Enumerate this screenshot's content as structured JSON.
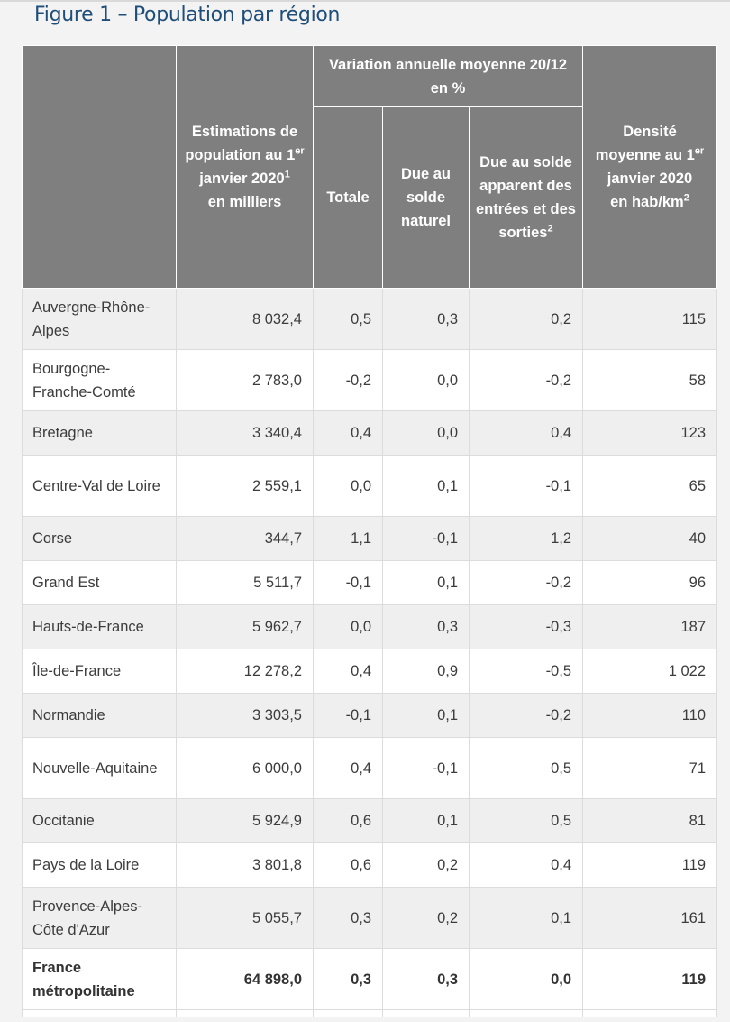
{
  "title": "Figure 1 – Population par région",
  "headers": {
    "col0": "",
    "estimations": {
      "line1": "Estimations de population au 1",
      "sup1": "er",
      "line2": " janvier 2020",
      "sup2": "1",
      "line3": "en milliers"
    },
    "variation": "Variation annuelle moyenne 20/12 en %",
    "totale": "Totale",
    "naturel": "Due au solde naturel",
    "apparent": {
      "text": "Due au solde apparent des entrées et des sorties",
      "sup": "2"
    },
    "densite": {
      "line1": "Densité moyenne au 1",
      "sup1": "er",
      "line2": " janvier 2020",
      "line3": "en hab/km",
      "sup2": "2"
    }
  },
  "rows": [
    {
      "region": "Auvergne-Rhône-Alpes",
      "pop": "8 032,4",
      "totale": "0,5",
      "naturel": "0,3",
      "apparent": "0,2",
      "densite": "115"
    },
    {
      "region": "Bourgogne-Franche-Comté",
      "pop": "2 783,0",
      "totale": "-0,2",
      "naturel": "0,0",
      "apparent": "-0,2",
      "densite": "58"
    },
    {
      "region": "Bretagne",
      "pop": "3 340,4",
      "totale": "0,4",
      "naturel": "0,0",
      "apparent": "0,4",
      "densite": "123"
    },
    {
      "region": "Centre-Val de Loire",
      "pop": "2 559,1",
      "totale": "0,0",
      "naturel": "0,1",
      "apparent": "-0,1",
      "densite": "65"
    },
    {
      "region": "Corse",
      "pop": "344,7",
      "totale": "1,1",
      "naturel": "-0,1",
      "apparent": "1,2",
      "densite": "40"
    },
    {
      "region": "Grand Est",
      "pop": "5 511,7",
      "totale": "-0,1",
      "naturel": "0,1",
      "apparent": "-0,2",
      "densite": "96"
    },
    {
      "region": "Hauts-de-France",
      "pop": "5 962,7",
      "totale": "0,0",
      "naturel": "0,3",
      "apparent": "-0,3",
      "densite": "187"
    },
    {
      "region": "Île-de-France",
      "pop": "12 278,2",
      "totale": "0,4",
      "naturel": "0,9",
      "apparent": "-0,5",
      "densite": "1 022"
    },
    {
      "region": "Normandie",
      "pop": "3 303,5",
      "totale": "-0,1",
      "naturel": "0,1",
      "apparent": "-0,2",
      "densite": "110"
    },
    {
      "region": "Nouvelle-Aquitaine",
      "pop": "6 000,0",
      "totale": "0,4",
      "naturel": "-0,1",
      "apparent": "0,5",
      "densite": "71"
    },
    {
      "region": "Occitanie",
      "pop": "5 924,9",
      "totale": "0,6",
      "naturel": "0,1",
      "apparent": "0,5",
      "densite": "81"
    },
    {
      "region": "Pays de la Loire",
      "pop": "3 801,8",
      "totale": "0,6",
      "naturel": "0,2",
      "apparent": "0,4",
      "densite": "119"
    },
    {
      "region": "Provence-Alpes-Côte d'Azur",
      "pop": "5 055,7",
      "totale": "0,3",
      "naturel": "0,2",
      "apparent": "0,1",
      "densite": "161"
    }
  ],
  "total": {
    "region": "France métropolitaine",
    "pop": "64 898,0",
    "totale": "0,3",
    "naturel": "0,3",
    "apparent": "0,0",
    "densite": "119"
  },
  "colors": {
    "header_bg": "#7f7f7f",
    "title": "#1f4e79",
    "row_alt": "#efefef"
  }
}
